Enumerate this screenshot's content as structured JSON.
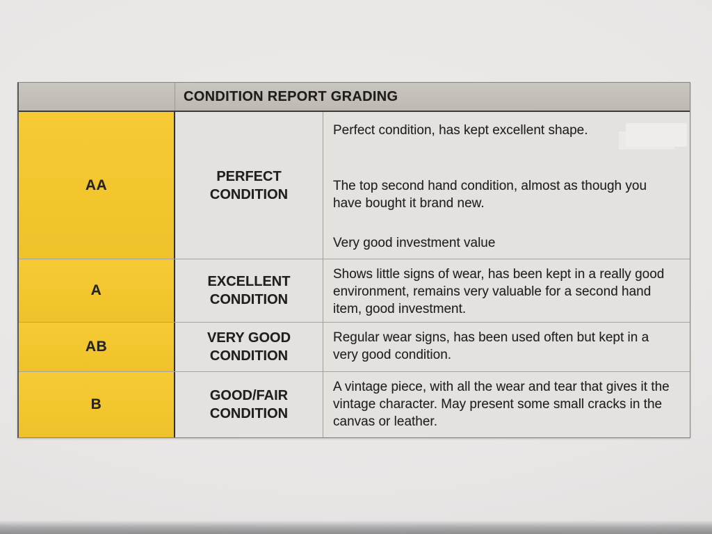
{
  "document": {
    "header_title": "CONDITION REPORT GRADING",
    "rows": [
      {
        "grade": "AA",
        "label": "PERFECT CONDITION",
        "paragraphs": [
          "Perfect condition, has kept excellent shape.",
          "The top second hand condition, almost as though you have bought it brand new.",
          "Very good investment value"
        ]
      },
      {
        "grade": "A",
        "label": "EXCELLENT CONDITION",
        "paragraphs": [
          "Shows little signs of wear, has been kept in a really good environment, remains very valuable for a second hand item, good investment."
        ]
      },
      {
        "grade": "AB",
        "label": "VERY GOOD CONDITION",
        "paragraphs": [
          "Regular wear signs, has been used often but kept in a very good condition."
        ]
      },
      {
        "grade": "B",
        "label": "GOOD/FAIR CONDITION",
        "paragraphs": [
          "A vintage piece, with all the wear and tear that gives it the vintage character. May present some small cracks in the canvas or leather."
        ]
      }
    ],
    "colors": {
      "grade_column_yellow": "#f3c62e",
      "header_bar_gray": "#c3bfb8",
      "cell_background": "#e4e2df",
      "paper_background": "#e9e7e6",
      "text": "#232220"
    }
  }
}
